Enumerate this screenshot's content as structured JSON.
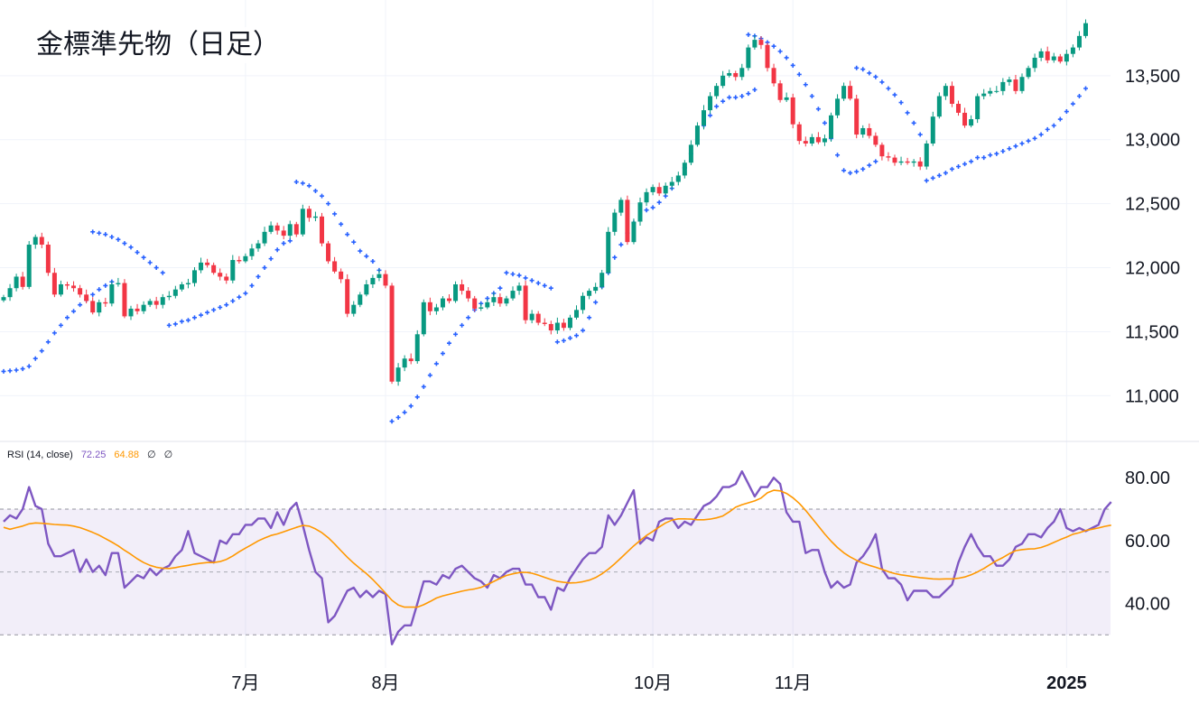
{
  "chart_data": [
    {
      "type": "candlestick",
      "title": "金標準先物（日足）",
      "ylim": [
        10650,
        13950
      ],
      "y_ticks": [
        11000,
        11500,
        12000,
        12500,
        13000,
        13500
      ],
      "y_tick_labels": [
        "11,000",
        "11,500",
        "12,000",
        "12,500",
        "13,000",
        "13,500"
      ],
      "x_tick_labels": [
        {
          "label": "7月",
          "bar": 38,
          "bold": false
        },
        {
          "label": "8月",
          "bar": 60,
          "bold": false
        },
        {
          "label": "10月",
          "bar": 102,
          "bold": false
        },
        {
          "label": "11月",
          "bar": 124,
          "bold": false
        },
        {
          "label": "2025",
          "bar": 167,
          "bold": true
        }
      ],
      "closes": [
        11770,
        11840,
        11930,
        11850,
        12180,
        12240,
        12180,
        11960,
        11790,
        11870,
        11860,
        11840,
        11790,
        11740,
        11650,
        11730,
        11720,
        11870,
        11880,
        11620,
        11680,
        11660,
        11710,
        11740,
        11710,
        11770,
        11780,
        11830,
        11870,
        11880,
        11980,
        12040,
        12020,
        11960,
        11930,
        11900,
        12060,
        12050,
        12090,
        12150,
        12190,
        12280,
        12330,
        12290,
        12250,
        12340,
        12260,
        12460,
        12390,
        12400,
        12190,
        12050,
        11970,
        11910,
        11640,
        11710,
        11790,
        11870,
        11920,
        11950,
        11860,
        11110,
        11220,
        11290,
        11270,
        11480,
        11730,
        11660,
        11690,
        11760,
        11740,
        11870,
        11820,
        11760,
        11680,
        11690,
        11730,
        11770,
        11720,
        11760,
        11820,
        11860,
        11590,
        11640,
        11570,
        11560,
        11510,
        11570,
        11530,
        11610,
        11670,
        11780,
        11820,
        11850,
        11960,
        12280,
        12430,
        12530,
        12200,
        12360,
        12510,
        12590,
        12630,
        12580,
        12640,
        12670,
        12720,
        12820,
        12960,
        13110,
        13230,
        13340,
        13420,
        13500,
        13520,
        13490,
        13560,
        13720,
        13780,
        13740,
        13560,
        13440,
        13310,
        13330,
        13120,
        12990,
        12970,
        13020,
        12980,
        13010,
        13190,
        13320,
        13420,
        13320,
        13040,
        13090,
        13030,
        12960,
        12870,
        12860,
        12820,
        12830,
        12820,
        12830,
        12790,
        12970,
        13180,
        13340,
        13420,
        13280,
        13210,
        13110,
        13160,
        13340,
        13360,
        13380,
        13380,
        13450,
        13470,
        13380,
        13490,
        13560,
        13640,
        13690,
        13620,
        13650,
        13610,
        13670,
        13720,
        13810,
        13910
      ],
      "sar_segments": [
        {
          "start_bar": 0,
          "values": [
            11190,
            11195,
            11200,
            11210,
            11230,
            11290,
            11350,
            11420,
            11490,
            11550,
            11610,
            11660,
            11710,
            11750,
            11790,
            11830,
            11860,
            11890
          ]
        },
        {
          "start_bar": 14,
          "values": [
            12280,
            12270,
            12260,
            12240,
            12220,
            12190,
            12160,
            12120,
            12080,
            12040,
            12000,
            11960
          ]
        },
        {
          "start_bar": 26,
          "values": [
            11550,
            11560,
            11580,
            11590,
            11610,
            11630,
            11650,
            11670,
            11690,
            11710,
            11740,
            11770,
            11800,
            11860,
            11930,
            12000,
            12070,
            12140,
            12190,
            12210
          ]
        },
        {
          "start_bar": 46,
          "values": [
            12670,
            12660,
            12640,
            12600,
            12560,
            12500,
            12420,
            12340,
            12260,
            12200,
            12130,
            12090,
            12050,
            11980
          ]
        },
        {
          "start_bar": 61,
          "values": [
            10800,
            10830,
            10870,
            10920,
            10990,
            11070,
            11160,
            11250,
            11330,
            11410,
            11480,
            11550,
            11610,
            11670,
            11720,
            11760,
            11800,
            11840
          ]
        },
        {
          "start_bar": 79,
          "values": [
            11960,
            11950,
            11940,
            11920,
            11900,
            11880,
            11860,
            11840
          ]
        },
        {
          "start_bar": 87,
          "values": [
            11420,
            11430,
            11450,
            11470,
            11510,
            11610,
            11730,
            11850,
            11960,
            12080,
            12180,
            12270,
            12350,
            12420,
            12450,
            12470,
            12510,
            12560,
            12620,
            12690,
            12780,
            12890,
            13000,
            13110,
            13190,
            13260,
            13300,
            13330,
            13330,
            13340,
            13360,
            13390
          ]
        },
        {
          "start_bar": 117,
          "values": [
            13820,
            13810,
            13790,
            13760,
            13730,
            13690,
            13640,
            13580,
            13510,
            13430,
            13340,
            13240,
            13130,
            13010,
            12880,
            12760,
            12740,
            12750,
            12770,
            12800,
            12830
          ]
        },
        {
          "start_bar": 134,
          "values": [
            13560,
            13550,
            13520,
            13490,
            13450,
            13400,
            13350,
            13290,
            13210,
            13130,
            13040
          ]
        },
        {
          "start_bar": 145,
          "values": [
            12680,
            12700,
            12720,
            12740,
            12770,
            12790,
            12810,
            12830,
            12860,
            12860,
            12880,
            12890,
            12910,
            12930,
            12950,
            12970,
            12990,
            13010,
            13040,
            13080,
            13110,
            13160,
            13220,
            13280,
            13340,
            13400,
            13450,
            13510,
            13530,
            13560,
            13550
          ]
        }
      ],
      "colors": {
        "up": "#089981",
        "down": "#F23645",
        "sar": "#2962FF",
        "grid": "#F0F3FA"
      }
    },
    {
      "type": "line",
      "title": "RSI (14, close)",
      "ylim": [
        25.2,
        85.5
      ],
      "y_ticks": [
        40,
        60,
        80
      ],
      "y_tick_labels": [
        "40.00",
        "60.00",
        "80.00"
      ],
      "band": {
        "lower": 30,
        "middle": 50,
        "upper": 70
      },
      "series": [
        {
          "name": "RSI",
          "color": "#7E57C2",
          "values": [
            66,
            68,
            67,
            70,
            77,
            71,
            70,
            59,
            55,
            55,
            56,
            57,
            50,
            54,
            50,
            52,
            49,
            56,
            56,
            45,
            47,
            49,
            48,
            51,
            49,
            51,
            52,
            55,
            57,
            63,
            56,
            55,
            54,
            53,
            60,
            59,
            62,
            62,
            65,
            65,
            67,
            67,
            64,
            69,
            65,
            70,
            72,
            65,
            57,
            50,
            48,
            34,
            36,
            40,
            44,
            45,
            42,
            44,
            42,
            44,
            43,
            27,
            31,
            33,
            33,
            40,
            47,
            47,
            46,
            49,
            48,
            51,
            52,
            50,
            48,
            47,
            45,
            49,
            48,
            50,
            51,
            51,
            46,
            46,
            42,
            42,
            38,
            45,
            44,
            48,
            51,
            54,
            56,
            56,
            58,
            68,
            65,
            68,
            72,
            76,
            59,
            61,
            60,
            66,
            67,
            67,
            64,
            66,
            65,
            68,
            71,
            72,
            74,
            77,
            77,
            78,
            82,
            78,
            74,
            77,
            77,
            80,
            78,
            69,
            66,
            66,
            56,
            57,
            57,
            50,
            45,
            47,
            45,
            46,
            53,
            55,
            58,
            62,
            51,
            48,
            48,
            46,
            41,
            44,
            44,
            44,
            42,
            42,
            44,
            46,
            53,
            58,
            62,
            58,
            55,
            55,
            52,
            52,
            54,
            58,
            59,
            62,
            62,
            61,
            64,
            66,
            70,
            64,
            63,
            64,
            63,
            64,
            65,
            70,
            72.25
          ]
        },
        {
          "name": "RSI-based MA",
          "color": "#FF9800",
          "values": [
            64.2,
            63.6,
            64.1,
            64.6,
            65.3,
            65.6,
            65.5,
            65.3,
            65.1,
            65.0,
            64.9,
            64.6,
            64.1,
            63.4,
            62.6,
            61.7,
            60.6,
            59.5,
            58.3,
            56.9,
            55.6,
            54.2,
            53.0,
            52.1,
            51.5,
            51.2,
            51.1,
            51.4,
            51.8,
            52.1,
            52.5,
            52.8,
            53.0,
            53.0,
            53.3,
            54.0,
            55.1,
            56.4,
            57.6,
            58.7,
            59.9,
            60.8,
            61.6,
            62.1,
            62.8,
            63.5,
            64.2,
            64.8,
            64.6,
            63.7,
            62.5,
            60.9,
            58.9,
            56.8,
            54.7,
            52.8,
            51.1,
            49.5,
            47.6,
            45.5,
            43.3,
            41.0,
            39.5,
            38.8,
            38.8,
            38.8,
            39.6,
            40.6,
            41.7,
            42.4,
            42.9,
            43.4,
            43.9,
            44.3,
            44.6,
            45.1,
            46.0,
            47.0,
            48.0,
            48.9,
            49.4,
            49.8,
            49.9,
            49.6,
            49.0,
            48.3,
            47.6,
            47.0,
            46.7,
            46.5,
            46.6,
            46.9,
            47.4,
            48.2,
            49.4,
            50.9,
            52.6,
            54.5,
            56.4,
            58.3,
            60.0,
            61.6,
            62.9,
            64.3,
            65.6,
            66.5,
            66.9,
            66.9,
            66.8,
            66.6,
            66.6,
            66.8,
            67.2,
            67.8,
            69.1,
            70.6,
            71.4,
            72.0,
            72.6,
            73.5,
            75.2,
            76.0,
            75.8,
            75.0,
            73.6,
            71.8,
            69.6,
            67.1,
            64.6,
            62.1,
            59.8,
            57.8,
            56.1,
            54.8,
            53.7,
            52.8,
            52.1,
            51.5,
            50.8,
            50.1,
            49.5,
            49.1,
            48.8,
            48.5,
            48.2,
            48.0,
            47.8,
            47.7,
            47.8,
            47.8,
            48.0,
            48.4,
            49.1,
            50.0,
            51.1,
            52.4,
            53.6,
            54.6,
            55.8,
            56.8,
            57.1,
            57.3,
            57.4,
            57.8,
            58.5,
            59.4,
            60.3,
            61.1,
            62.0,
            62.5,
            63.2,
            63.6,
            64.0,
            64.5,
            64.88
          ]
        }
      ],
      "legend": {
        "label": "RSI (14, close)",
        "rsi_value": "72.25",
        "ma_value": "64.88",
        "extra1": "∅",
        "extra2": "∅"
      }
    }
  ]
}
